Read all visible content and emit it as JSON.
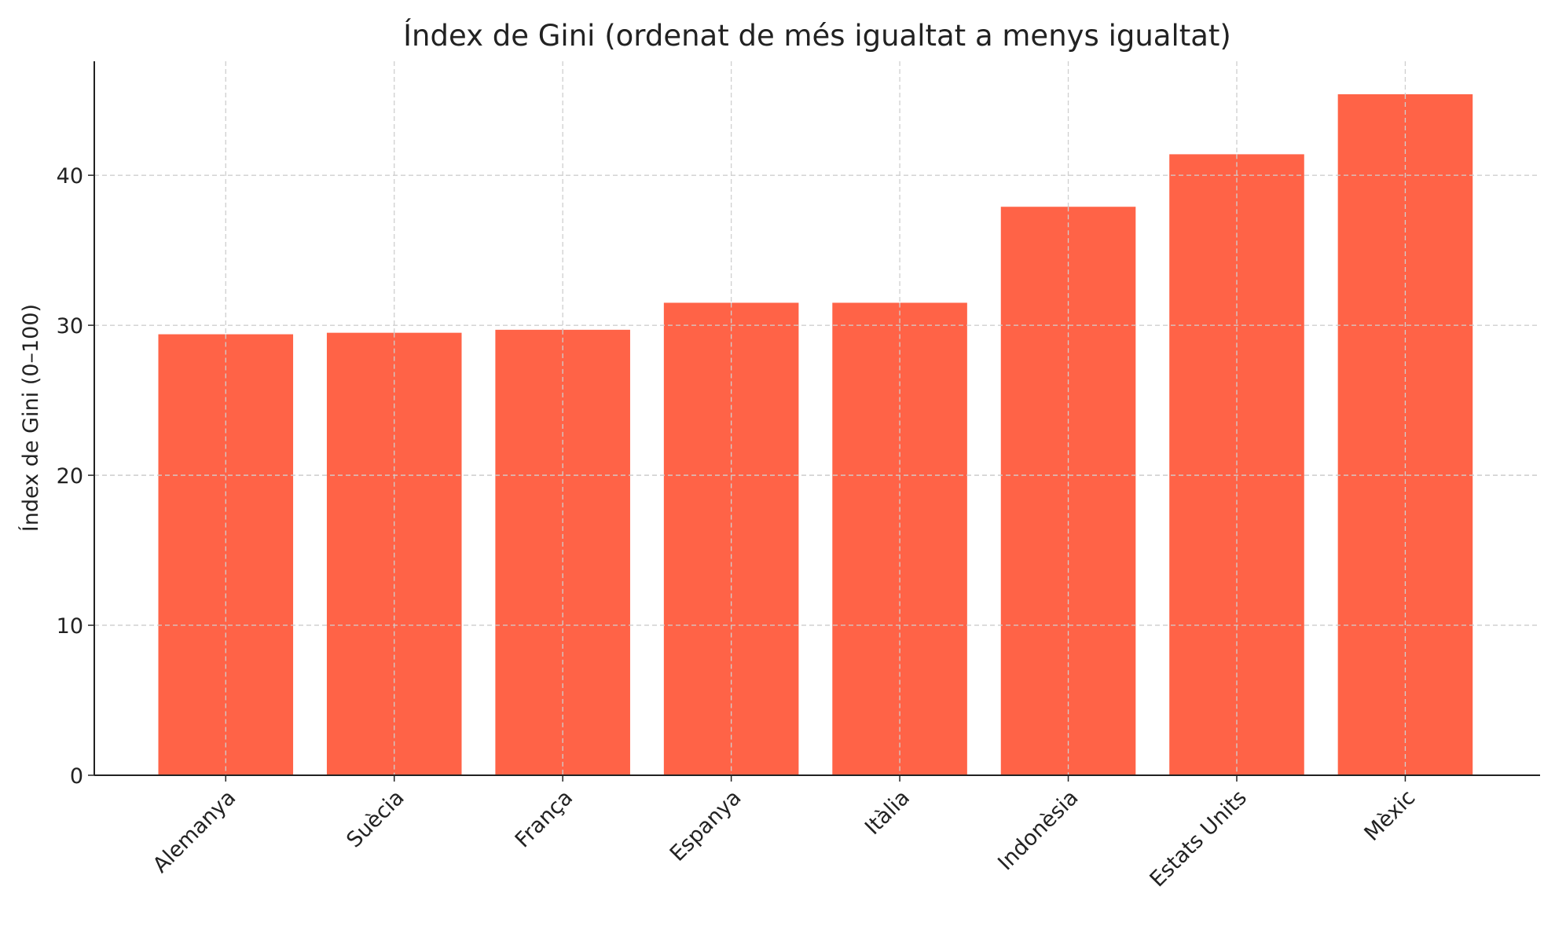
{
  "chart_data": {
    "type": "bar",
    "title": "Índex de Gini (ordenat de més igualtat a menys igualtat)",
    "xlabel": "",
    "ylabel": "Índex de Gini (0–100)",
    "categories": [
      "Alemanya",
      "Suècia",
      "França",
      "Espanya",
      "Itàlia",
      "Indonèsia",
      "Estats Units",
      "Mèxic"
    ],
    "values": [
      29.4,
      29.5,
      29.7,
      31.5,
      31.5,
      37.9,
      41.4,
      45.4
    ],
    "ylim": [
      0,
      47.6
    ],
    "yticks": [
      0,
      10,
      20,
      30,
      40
    ],
    "grid": true,
    "bar_color": "#ff6347"
  }
}
